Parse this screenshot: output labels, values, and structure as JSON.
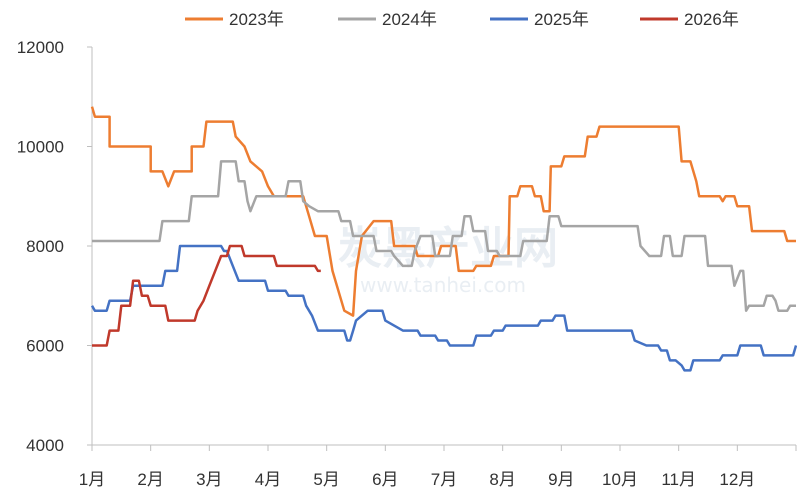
{
  "chart_data": {
    "type": "line",
    "categories": [
      "1月",
      "2月",
      "3月",
      "4月",
      "5月",
      "6月",
      "7月",
      "8月",
      "9月",
      "10月",
      "11月",
      "12月"
    ],
    "ylim": [
      4000,
      12000
    ],
    "yticks": [
      4000,
      6000,
      8000,
      10000,
      12000
    ],
    "ytick_labels": [
      "4000",
      "6000",
      "8000",
      "10000",
      "12000"
    ],
    "legend_position": "top",
    "grid": false,
    "watermark": "炭黑产业网",
    "watermark_sub": "www.tanhei.com",
    "series": [
      {
        "name": "2023年",
        "color": "#ED7D31",
        "points": [
          [
            0,
            10800
          ],
          [
            0.05,
            10600
          ],
          [
            0.3,
            10600
          ],
          [
            0.3,
            10000
          ],
          [
            1.0,
            10000
          ],
          [
            1.0,
            9500
          ],
          [
            1.2,
            9500
          ],
          [
            1.3,
            9200
          ],
          [
            1.4,
            9500
          ],
          [
            1.7,
            9500
          ],
          [
            1.7,
            10000
          ],
          [
            1.9,
            10000
          ],
          [
            1.95,
            10500
          ],
          [
            2.4,
            10500
          ],
          [
            2.45,
            10200
          ],
          [
            2.6,
            10000
          ],
          [
            2.7,
            9700
          ],
          [
            2.9,
            9500
          ],
          [
            3.0,
            9200
          ],
          [
            3.1,
            9000
          ],
          [
            3.6,
            9000
          ],
          [
            3.7,
            8600
          ],
          [
            3.8,
            8200
          ],
          [
            4.0,
            8200
          ],
          [
            4.1,
            7500
          ],
          [
            4.2,
            7100
          ],
          [
            4.3,
            6700
          ],
          [
            4.45,
            6600
          ],
          [
            4.5,
            7500
          ],
          [
            4.6,
            8200
          ],
          [
            4.8,
            8500
          ],
          [
            5.1,
            8500
          ],
          [
            5.15,
            8000
          ],
          [
            5.5,
            8000
          ],
          [
            5.55,
            7800
          ],
          [
            5.9,
            7800
          ],
          [
            5.95,
            8000
          ],
          [
            6.2,
            8000
          ],
          [
            6.25,
            7500
          ],
          [
            6.5,
            7500
          ],
          [
            6.55,
            7600
          ],
          [
            6.8,
            7600
          ],
          [
            6.85,
            7800
          ],
          [
            7.1,
            7800
          ],
          [
            7.12,
            9000
          ],
          [
            7.25,
            9000
          ],
          [
            7.3,
            9200
          ],
          [
            7.5,
            9200
          ],
          [
            7.55,
            9000
          ],
          [
            7.65,
            9000
          ],
          [
            7.7,
            8700
          ],
          [
            7.8,
            8700
          ],
          [
            7.82,
            9600
          ],
          [
            8.0,
            9600
          ],
          [
            8.05,
            9800
          ],
          [
            8.4,
            9800
          ],
          [
            8.45,
            10200
          ],
          [
            8.6,
            10200
          ],
          [
            8.65,
            10400
          ],
          [
            9.0,
            10400
          ],
          [
            10.0,
            10400
          ],
          [
            10.05,
            9700
          ],
          [
            10.2,
            9700
          ],
          [
            10.3,
            9300
          ],
          [
            10.35,
            9000
          ],
          [
            10.7,
            9000
          ],
          [
            10.75,
            8900
          ],
          [
            10.8,
            9000
          ],
          [
            10.95,
            9000
          ],
          [
            11.0,
            8800
          ],
          [
            11.2,
            8800
          ],
          [
            11.25,
            8300
          ],
          [
            11.8,
            8300
          ],
          [
            11.85,
            8100
          ],
          [
            12.0,
            8100
          ]
        ]
      },
      {
        "name": "2024年",
        "color": "#A5A5A5",
        "points": [
          [
            0,
            8100
          ],
          [
            1.15,
            8100
          ],
          [
            1.2,
            8500
          ],
          [
            1.65,
            8500
          ],
          [
            1.7,
            9000
          ],
          [
            2.15,
            9000
          ],
          [
            2.2,
            9700
          ],
          [
            2.45,
            9700
          ],
          [
            2.5,
            9300
          ],
          [
            2.6,
            9300
          ],
          [
            2.65,
            8900
          ],
          [
            2.7,
            8700
          ],
          [
            2.8,
            9000
          ],
          [
            3.3,
            9000
          ],
          [
            3.35,
            9300
          ],
          [
            3.55,
            9300
          ],
          [
            3.6,
            8900
          ],
          [
            3.7,
            8800
          ],
          [
            3.85,
            8700
          ],
          [
            4.2,
            8700
          ],
          [
            4.25,
            8500
          ],
          [
            4.4,
            8500
          ],
          [
            4.45,
            8200
          ],
          [
            4.8,
            8200
          ],
          [
            4.85,
            7900
          ],
          [
            5.1,
            7900
          ],
          [
            5.15,
            7800
          ],
          [
            5.3,
            7600
          ],
          [
            5.45,
            7600
          ],
          [
            5.5,
            7900
          ],
          [
            5.6,
            8200
          ],
          [
            5.8,
            8200
          ],
          [
            5.85,
            7800
          ],
          [
            6.1,
            7800
          ],
          [
            6.15,
            8200
          ],
          [
            6.3,
            8200
          ],
          [
            6.35,
            8600
          ],
          [
            6.45,
            8600
          ],
          [
            6.5,
            8300
          ],
          [
            6.7,
            8300
          ],
          [
            6.75,
            7900
          ],
          [
            6.9,
            7900
          ],
          [
            6.95,
            7800
          ],
          [
            7.3,
            7800
          ],
          [
            7.35,
            8100
          ],
          [
            7.75,
            8100
          ],
          [
            7.8,
            8600
          ],
          [
            7.95,
            8600
          ],
          [
            8.0,
            8400
          ],
          [
            8.6,
            8400
          ],
          [
            9.0,
            8400
          ],
          [
            9.3,
            8400
          ],
          [
            9.35,
            8000
          ],
          [
            9.5,
            7800
          ],
          [
            9.7,
            7800
          ],
          [
            9.75,
            8200
          ],
          [
            9.85,
            8200
          ],
          [
            9.9,
            7800
          ],
          [
            10.05,
            7800
          ],
          [
            10.1,
            8200
          ],
          [
            10.45,
            8200
          ],
          [
            10.5,
            7600
          ],
          [
            10.9,
            7600
          ],
          [
            10.95,
            7200
          ],
          [
            11.05,
            7500
          ],
          [
            11.1,
            7500
          ],
          [
            11.15,
            6700
          ],
          [
            11.2,
            6800
          ],
          [
            11.45,
            6800
          ],
          [
            11.5,
            7000
          ],
          [
            11.6,
            7000
          ],
          [
            11.65,
            6900
          ],
          [
            11.7,
            6700
          ],
          [
            11.85,
            6700
          ],
          [
            11.9,
            6800
          ],
          [
            12.0,
            6800
          ]
        ]
      },
      {
        "name": "2025年",
        "color": "#4472C4",
        "points": [
          [
            0,
            6800
          ],
          [
            0.05,
            6700
          ],
          [
            0.25,
            6700
          ],
          [
            0.3,
            6900
          ],
          [
            0.65,
            6900
          ],
          [
            0.7,
            7200
          ],
          [
            1.2,
            7200
          ],
          [
            1.25,
            7500
          ],
          [
            1.45,
            7500
          ],
          [
            1.5,
            8000
          ],
          [
            2.2,
            8000
          ],
          [
            2.25,
            7900
          ],
          [
            2.3,
            7900
          ],
          [
            2.4,
            7600
          ],
          [
            2.5,
            7300
          ],
          [
            2.95,
            7300
          ],
          [
            3.0,
            7100
          ],
          [
            3.3,
            7100
          ],
          [
            3.35,
            7000
          ],
          [
            3.6,
            7000
          ],
          [
            3.65,
            6800
          ],
          [
            3.75,
            6600
          ],
          [
            3.85,
            6300
          ],
          [
            4.3,
            6300
          ],
          [
            4.35,
            6100
          ],
          [
            4.4,
            6100
          ],
          [
            4.45,
            6300
          ],
          [
            4.5,
            6500
          ],
          [
            4.7,
            6700
          ],
          [
            4.95,
            6700
          ],
          [
            5.0,
            6500
          ],
          [
            5.15,
            6400
          ],
          [
            5.3,
            6300
          ],
          [
            5.55,
            6300
          ],
          [
            5.6,
            6200
          ],
          [
            5.85,
            6200
          ],
          [
            5.9,
            6100
          ],
          [
            6.05,
            6100
          ],
          [
            6.1,
            6000
          ],
          [
            6.5,
            6000
          ],
          [
            6.55,
            6200
          ],
          [
            6.8,
            6200
          ],
          [
            6.85,
            6300
          ],
          [
            7.0,
            6300
          ],
          [
            7.05,
            6400
          ],
          [
            7.6,
            6400
          ],
          [
            7.65,
            6500
          ],
          [
            7.85,
            6500
          ],
          [
            7.9,
            6600
          ],
          [
            8.05,
            6600
          ],
          [
            8.1,
            6300
          ],
          [
            9.0,
            6300
          ],
          [
            9.2,
            6300
          ],
          [
            9.25,
            6100
          ],
          [
            9.45,
            6000
          ],
          [
            9.65,
            6000
          ],
          [
            9.7,
            5900
          ],
          [
            9.8,
            5900
          ],
          [
            9.85,
            5700
          ],
          [
            9.95,
            5700
          ],
          [
            10.05,
            5600
          ],
          [
            10.1,
            5500
          ],
          [
            10.2,
            5500
          ],
          [
            10.25,
            5700
          ],
          [
            10.7,
            5700
          ],
          [
            10.75,
            5800
          ],
          [
            11.0,
            5800
          ],
          [
            11.05,
            6000
          ],
          [
            11.4,
            6000
          ],
          [
            11.45,
            5800
          ],
          [
            11.95,
            5800
          ],
          [
            12.0,
            6000
          ]
        ]
      },
      {
        "name": "2026年",
        "color": "#C0392B",
        "points": [
          [
            0,
            6000
          ],
          [
            0.25,
            6000
          ],
          [
            0.3,
            6300
          ],
          [
            0.45,
            6300
          ],
          [
            0.5,
            6800
          ],
          [
            0.65,
            6800
          ],
          [
            0.7,
            7300
          ],
          [
            0.8,
            7300
          ],
          [
            0.85,
            7000
          ],
          [
            0.95,
            7000
          ],
          [
            1.0,
            6800
          ],
          [
            1.25,
            6800
          ],
          [
            1.3,
            6500
          ],
          [
            1.75,
            6500
          ],
          [
            1.8,
            6700
          ],
          [
            1.9,
            6900
          ],
          [
            2.0,
            7200
          ],
          [
            2.1,
            7500
          ],
          [
            2.2,
            7800
          ],
          [
            2.3,
            7800
          ],
          [
            2.35,
            8000
          ],
          [
            2.55,
            8000
          ],
          [
            2.6,
            7800
          ],
          [
            3.1,
            7800
          ],
          [
            3.15,
            7600
          ],
          [
            3.8,
            7600
          ],
          [
            3.85,
            7500
          ],
          [
            3.9,
            7500
          ]
        ]
      }
    ]
  }
}
